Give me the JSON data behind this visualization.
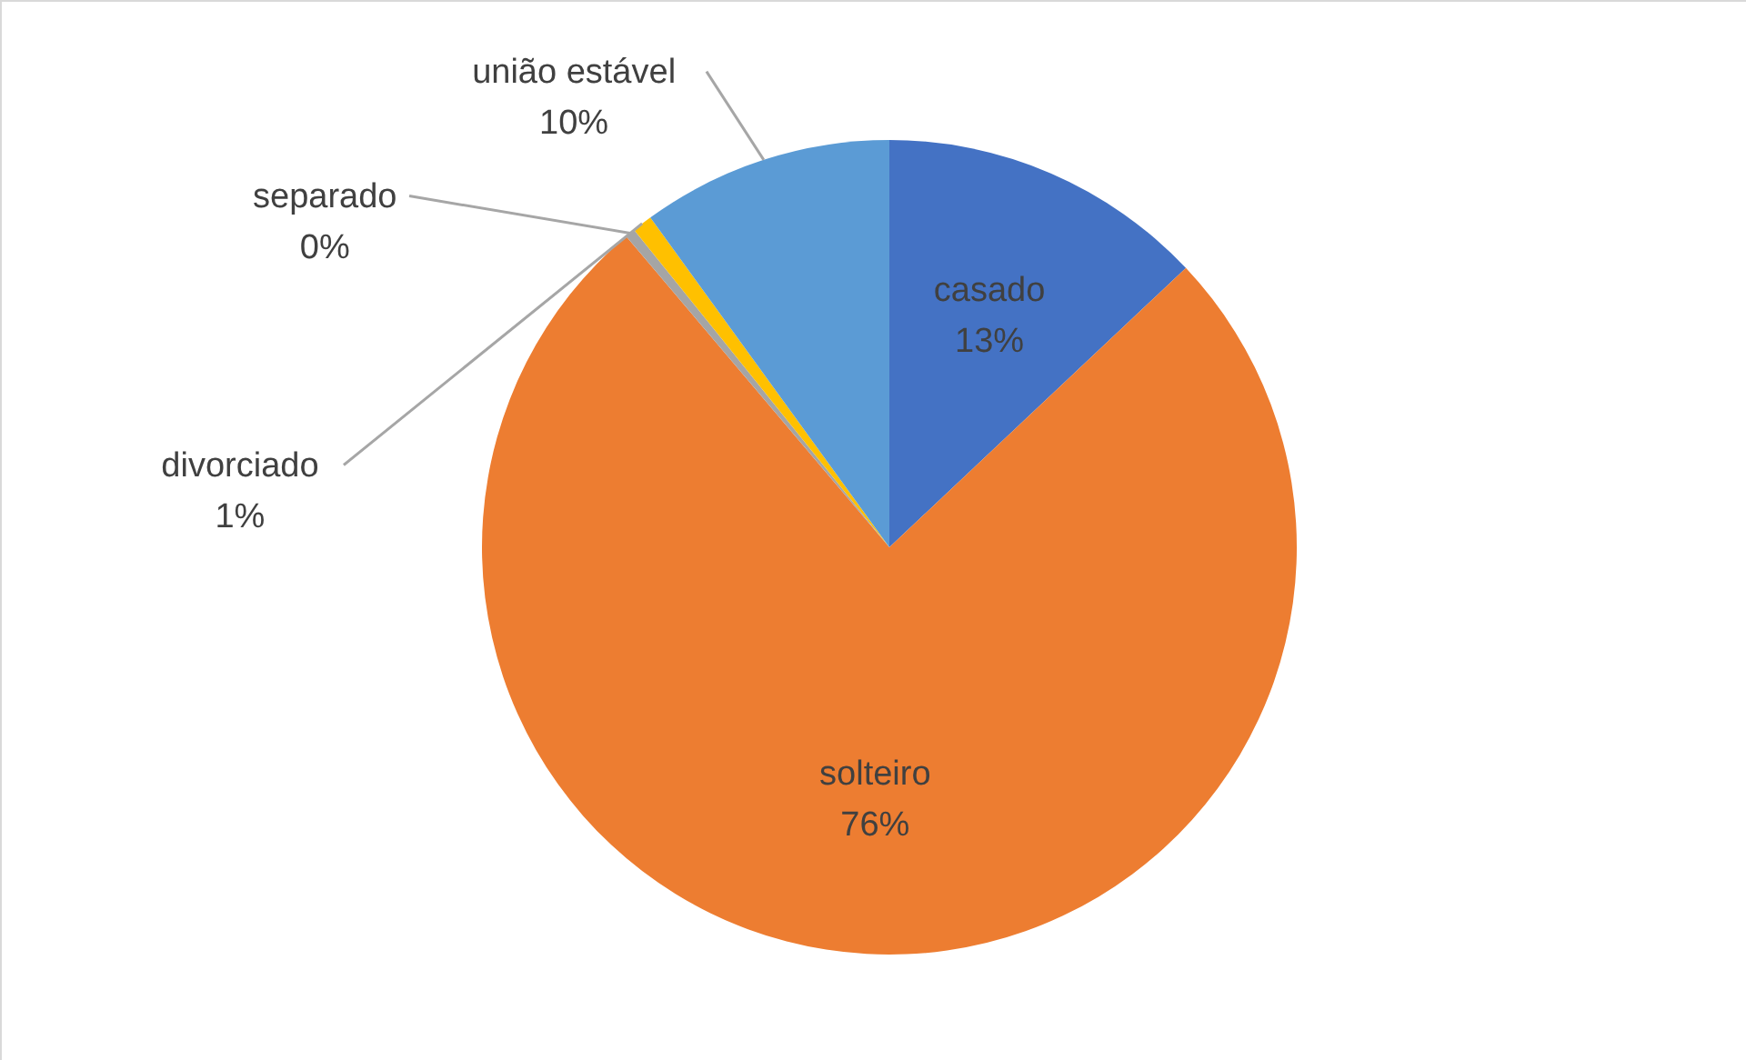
{
  "chart_data": {
    "type": "pie",
    "categories": [
      "casado",
      "solteiro",
      "separado",
      "divorciado",
      "união estável"
    ],
    "values": [
      13,
      76,
      0.4,
      0.8,
      10
    ],
    "value_labels": [
      "13%",
      "76%",
      "0%",
      "1%",
      "10%"
    ],
    "colors": [
      "#4472c4",
      "#ed7d31",
      "#a5a5a5",
      "#ffc000",
      "#5b9bd5"
    ]
  }
}
